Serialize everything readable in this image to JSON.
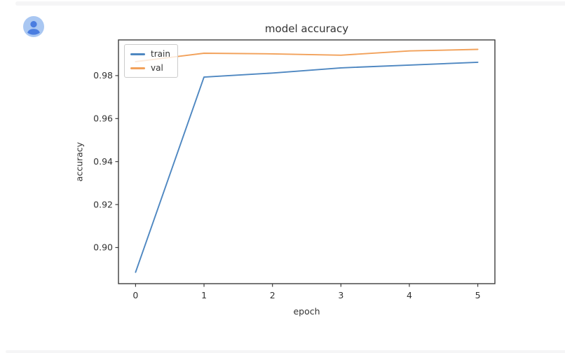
{
  "page": {
    "background": "#ffffff",
    "edge_strip_color": "#f5f5f6"
  },
  "avatar": {
    "icon": "person-icon",
    "circle_color": "#a9c7f2",
    "glyph_color": "#4a7de0"
  },
  "chart_data": {
    "type": "line",
    "title": "model accuracy",
    "xlabel": "epoch",
    "ylabel": "accuracy",
    "x": [
      0,
      1,
      2,
      3,
      4,
      5
    ],
    "series": [
      {
        "name": "train",
        "color": "#4e87c1",
        "values": [
          0.8885,
          0.9793,
          0.9812,
          0.9836,
          0.9849,
          0.9862
        ]
      },
      {
        "name": "val",
        "color": "#f2a15a",
        "values": [
          0.9865,
          0.9904,
          0.9901,
          0.9895,
          0.9915,
          0.9922
        ]
      }
    ],
    "xticks": [
      0,
      1,
      2,
      3,
      4,
      5
    ],
    "xtick_labels": [
      "0",
      "1",
      "2",
      "3",
      "4",
      "5"
    ],
    "yticks": [
      0.9,
      0.92,
      0.94,
      0.96,
      0.98
    ],
    "ytick_labels": [
      "0.90",
      "0.92",
      "0.94",
      "0.96",
      "0.98"
    ],
    "xlim": [
      -0.25,
      5.25
    ],
    "ylim": [
      0.8832,
      0.9966
    ],
    "grid": false,
    "legend_position": "upper left",
    "spine_color": "#3d3d3d",
    "text_color": "#333333"
  }
}
